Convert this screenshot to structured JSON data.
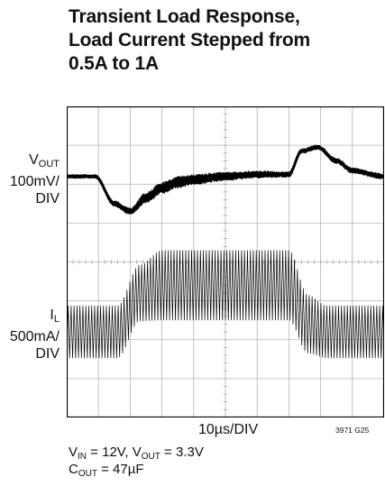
{
  "title": [
    "Transient Load Response,",
    "Load Current Stepped from",
    "0.5A to 1A"
  ],
  "vout_label": {
    "symbol": "V",
    "sub": "OUT",
    "line2": "100mV/",
    "line3": "DIV"
  },
  "il_label": {
    "symbol": "I",
    "sub": "L",
    "line2": "500mA/",
    "line3": "DIV"
  },
  "figure_id": "3971 G25",
  "conditions": {
    "line1": {
      "vin_sym": "V",
      "vin_sub": "IN",
      "vin_val": " = 12V, ",
      "vout_sym": "V",
      "vout_sub": "OUT",
      "vout_val": " = 3.3V"
    },
    "line2": {
      "cout_sym": "C",
      "cout_sub": "OUT",
      "cout_val": " = 47µF"
    }
  },
  "chart_data": {
    "type": "line",
    "xlabel": "10µs/DIV",
    "grid": true,
    "divisions": {
      "x": 10,
      "y": 8
    },
    "trace_color": "#000000",
    "series": [
      {
        "name": "VOUT",
        "scale": "100mV/DIV",
        "x_div": [
          0,
          0.9,
          1.5,
          2.0,
          2.5,
          3.0,
          3.5,
          4.0,
          5.0,
          6.0,
          7.0,
          7.4,
          7.9,
          8.5,
          9.0,
          10.0
        ],
        "y_div": [
          6.2,
          6.2,
          5.5,
          5.3,
          5.65,
          5.9,
          6.05,
          6.12,
          6.2,
          6.25,
          6.25,
          6.85,
          6.95,
          6.6,
          6.35,
          6.2
        ],
        "noise_div": [
          0.06,
          0.06,
          0.08,
          0.1,
          0.14,
          0.16,
          0.16,
          0.14,
          0.12,
          0.1,
          0.08,
          0.07,
          0.07,
          0.08,
          0.08,
          0.08
        ]
      },
      {
        "name": "IL",
        "scale": "500mA/DIV",
        "ripple_cycles": 108,
        "x_div": [
          0,
          1.6,
          2.3,
          3.0,
          7.0,
          7.6,
          8.2,
          10.0
        ],
        "center_div": [
          2.2,
          2.2,
          3.2,
          3.4,
          3.4,
          2.4,
          2.2,
          2.2
        ],
        "ripple_pp_div": [
          1.35,
          1.35,
          1.45,
          1.8,
          1.8,
          1.5,
          1.35,
          1.35
        ]
      }
    ]
  }
}
